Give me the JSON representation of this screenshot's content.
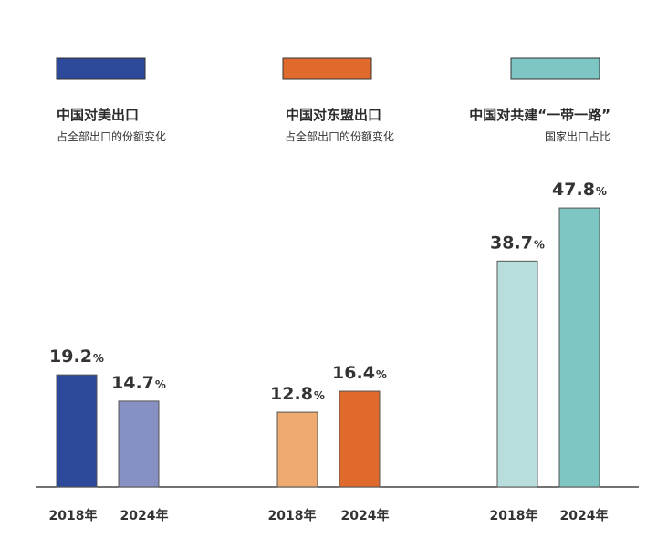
{
  "chart_data": {
    "type": "bar",
    "categories": [
      "2018年",
      "2024年"
    ],
    "unit": "%",
    "groups": [
      {
        "title": "中国对美出口",
        "subtitle": "占全部出口的份额变化",
        "legend_color": "#2d4a9a",
        "bar_colors": [
          "#2d4a9a",
          "#8790c2"
        ],
        "values": [
          19.2,
          14.7
        ],
        "labels": [
          "19.2",
          "14.7"
        ]
      },
      {
        "title": "中国对东盟出口",
        "subtitle": "占全部出口的份额变化",
        "legend_color": "#e06a2c",
        "bar_colors": [
          "#efaa72",
          "#e06a2c"
        ],
        "values": [
          12.8,
          16.4
        ],
        "labels": [
          "12.8",
          "16.4"
        ]
      },
      {
        "title": "中国对共建“一带一路”",
        "subtitle": "国家出口占比",
        "legend_color": "#7dc6c4",
        "bar_colors": [
          "#b7dedc",
          "#7dc6c4"
        ],
        "values": [
          38.7,
          47.8
        ],
        "labels": [
          "38.7",
          "47.8"
        ]
      }
    ],
    "ylim": [
      0,
      50
    ],
    "grid": false,
    "legend": "top"
  }
}
